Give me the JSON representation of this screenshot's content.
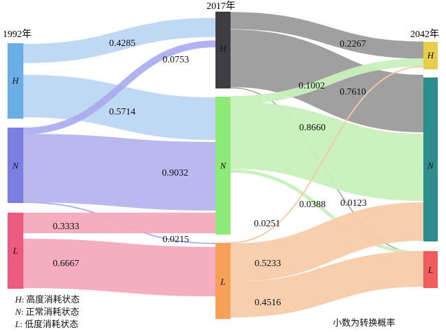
{
  "years": [
    "1992年",
    "2017年",
    "2042年"
  ],
  "node_labels": {
    "H": "H",
    "N": "N",
    "L": "L"
  },
  "colors": {
    "y1992": {
      "H": "#6aaee6",
      "N": "#7b7fe3",
      "L": "#ec5b7d"
    },
    "y2017": {
      "H": "#3e3e42",
      "N": "#8eea78",
      "L": "#f6a05a"
    },
    "y2042": {
      "H": "#e7cd4c",
      "N": "#2c8e8c",
      "L": "#ef5d5d"
    }
  },
  "flows": [
    {
      "from": "1992.H",
      "to": "2017.H",
      "value": "0.4285"
    },
    {
      "from": "1992.H",
      "to": "2017.N",
      "value": "0.5714"
    },
    {
      "from": "1992.N",
      "to": "2017.H",
      "value": "0.0753"
    },
    {
      "from": "1992.N",
      "to": "2017.N",
      "value": "0.9032"
    },
    {
      "from": "1992.N",
      "to": "2017.L",
      "value": "0.0215"
    },
    {
      "from": "1992.L",
      "to": "2017.N",
      "value": "0.3333"
    },
    {
      "from": "1992.L",
      "to": "2017.L",
      "value": "0.6667"
    },
    {
      "from": "2017.H",
      "to": "2042.H",
      "value": "0.2267"
    },
    {
      "from": "2017.H",
      "to": "2042.N",
      "value": "0.7610"
    },
    {
      "from": "2017.H",
      "to": "2042.L",
      "value": "0.0123"
    },
    {
      "from": "2017.N",
      "to": "2042.H",
      "value": "0.1002"
    },
    {
      "from": "2017.N",
      "to": "2042.N",
      "value": "0.8660"
    },
    {
      "from": "2017.N",
      "to": "2042.L",
      "value": "0.0388"
    },
    {
      "from": "2017.L",
      "to": "2042.H",
      "value": "0.0251"
    },
    {
      "from": "2017.L",
      "to": "2042.N",
      "value": "0.5233"
    },
    {
      "from": "2017.L",
      "to": "2042.L",
      "value": "0.4516"
    }
  ],
  "legend": [
    {
      "key": "H",
      "text": "高度消耗状态"
    },
    {
      "key": "N",
      "text": "正常消耗状态"
    },
    {
      "key": "L",
      "text": "低度消耗状态"
    }
  ],
  "note": "小数为转换概率"
}
